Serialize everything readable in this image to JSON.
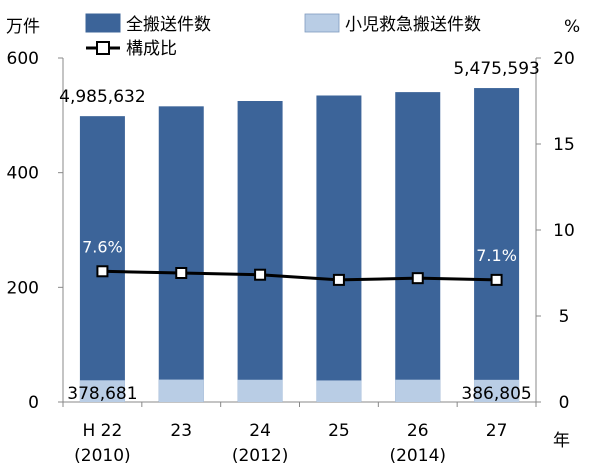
{
  "chart_data": {
    "type": "bar",
    "y_left_unit": "万件",
    "y_right_unit": "%",
    "x_unit": "年",
    "categories": [
      {
        "label": "H 22",
        "sub": "(2010)"
      },
      {
        "label": "23",
        "sub": ""
      },
      {
        "label": "24",
        "sub": "(2012)"
      },
      {
        "label": "25",
        "sub": ""
      },
      {
        "label": "26",
        "sub": "(2014)"
      },
      {
        "label": "27",
        "sub": ""
      }
    ],
    "ylim_left": [
      0,
      600
    ],
    "yticks_left": [
      "0",
      "200",
      "400",
      "600"
    ],
    "ylim_right": [
      0,
      20
    ],
    "yticks_right": [
      "0",
      "5",
      "10",
      "15",
      "20"
    ],
    "series": [
      {
        "name": "全搬送件数",
        "kind": "bar",
        "color": "#3C6499",
        "values": [
          4985632,
          5157000,
          5250000,
          5346000,
          5405000,
          5475593
        ]
      },
      {
        "name": "小児救急搬送件数",
        "kind": "bar",
        "color": "#B9CDE5",
        "values": [
          378681,
          391000,
          388000,
          376000,
          389000,
          386805
        ]
      },
      {
        "name": "構成比",
        "kind": "line",
        "axis": "right",
        "color": "#000000",
        "values": [
          7.6,
          7.5,
          7.4,
          7.1,
          7.2,
          7.1
        ]
      }
    ],
    "annotations": {
      "total_first": "4,985,632",
      "total_last": "5,475,593",
      "child_first": "378,681",
      "child_last": "386,805",
      "pct_first": "7.6%",
      "pct_last": "7.1%"
    },
    "legend_placement": "top",
    "grid": false
  }
}
